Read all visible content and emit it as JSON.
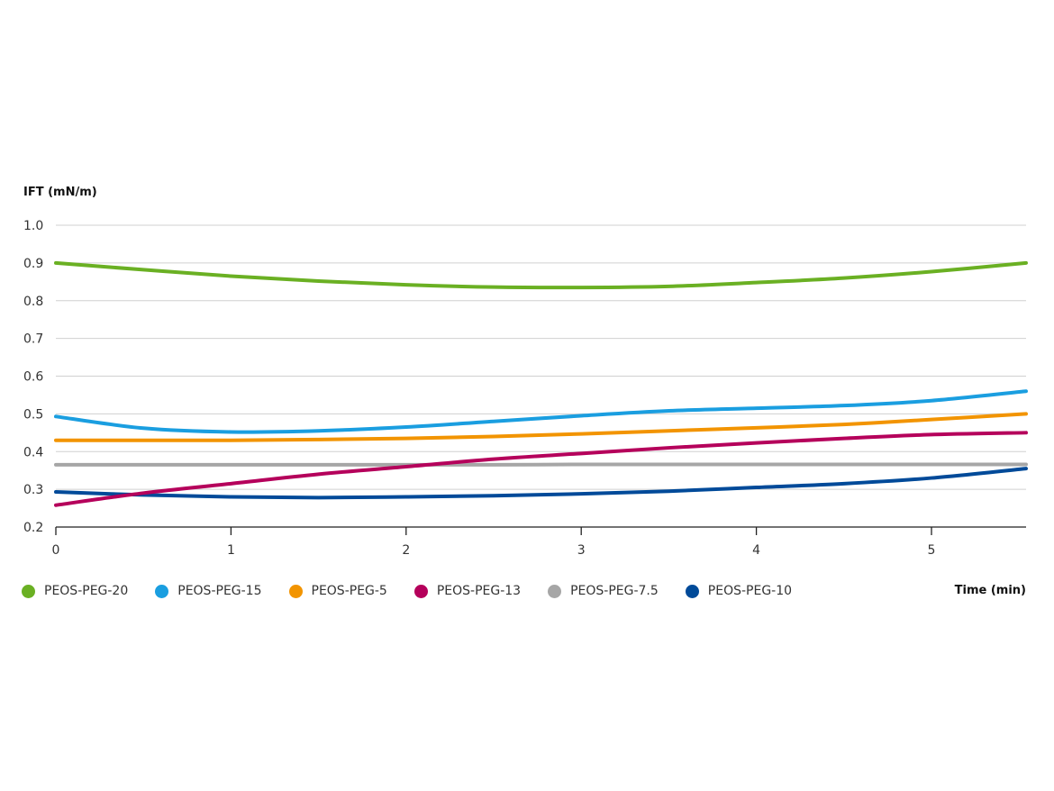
{
  "chart_data": {
    "type": "line",
    "title": "",
    "ylabel": "IFT (mN/m)",
    "xlabel": "Time (min)",
    "xlim": [
      0,
      5.54
    ],
    "ylim": [
      0.2,
      1.0
    ],
    "xticks": [
      "0",
      "1",
      "2",
      "3",
      "4",
      "5"
    ],
    "yticks": [
      "0.2",
      "0.3",
      "0.4",
      "0.5",
      "0.6",
      "0.7",
      "0.8",
      "0.9",
      "1.0"
    ],
    "grid": true,
    "legend_position": "bottom",
    "x": [
      0,
      0.5,
      1,
      1.5,
      2,
      2.5,
      3,
      3.5,
      4,
      4.5,
      5,
      5.54
    ],
    "series": [
      {
        "name": "PEOS-PEG-20",
        "color": "#6ab023",
        "values": [
          0.9,
          0.882,
          0.865,
          0.852,
          0.842,
          0.836,
          0.835,
          0.838,
          0.848,
          0.86,
          0.877,
          0.9
        ]
      },
      {
        "name": "PEOS-PEG-15",
        "color": "#1a9ee0",
        "values": [
          0.493,
          0.462,
          0.452,
          0.455,
          0.465,
          0.48,
          0.495,
          0.508,
          0.515,
          0.522,
          0.535,
          0.56
        ]
      },
      {
        "name": "PEOS-PEG-5",
        "color": "#f29400",
        "values": [
          0.43,
          0.43,
          0.43,
          0.432,
          0.435,
          0.44,
          0.447,
          0.455,
          0.463,
          0.472,
          0.485,
          0.5
        ]
      },
      {
        "name": "PEOS-PEG-13",
        "color": "#b5005b",
        "values": [
          0.258,
          0.29,
          0.315,
          0.34,
          0.36,
          0.38,
          0.395,
          0.41,
          0.423,
          0.435,
          0.445,
          0.45
        ]
      },
      {
        "name": "PEOS-PEG-7.5",
        "color": "#a6a6a6",
        "values": [
          0.365,
          0.365,
          0.365,
          0.365,
          0.365,
          0.365,
          0.366,
          0.366,
          0.366,
          0.366,
          0.366,
          0.366
        ]
      },
      {
        "name": "PEOS-PEG-10",
        "color": "#004a99",
        "values": [
          0.293,
          0.285,
          0.28,
          0.278,
          0.28,
          0.283,
          0.288,
          0.295,
          0.305,
          0.315,
          0.33,
          0.355
        ]
      }
    ]
  }
}
